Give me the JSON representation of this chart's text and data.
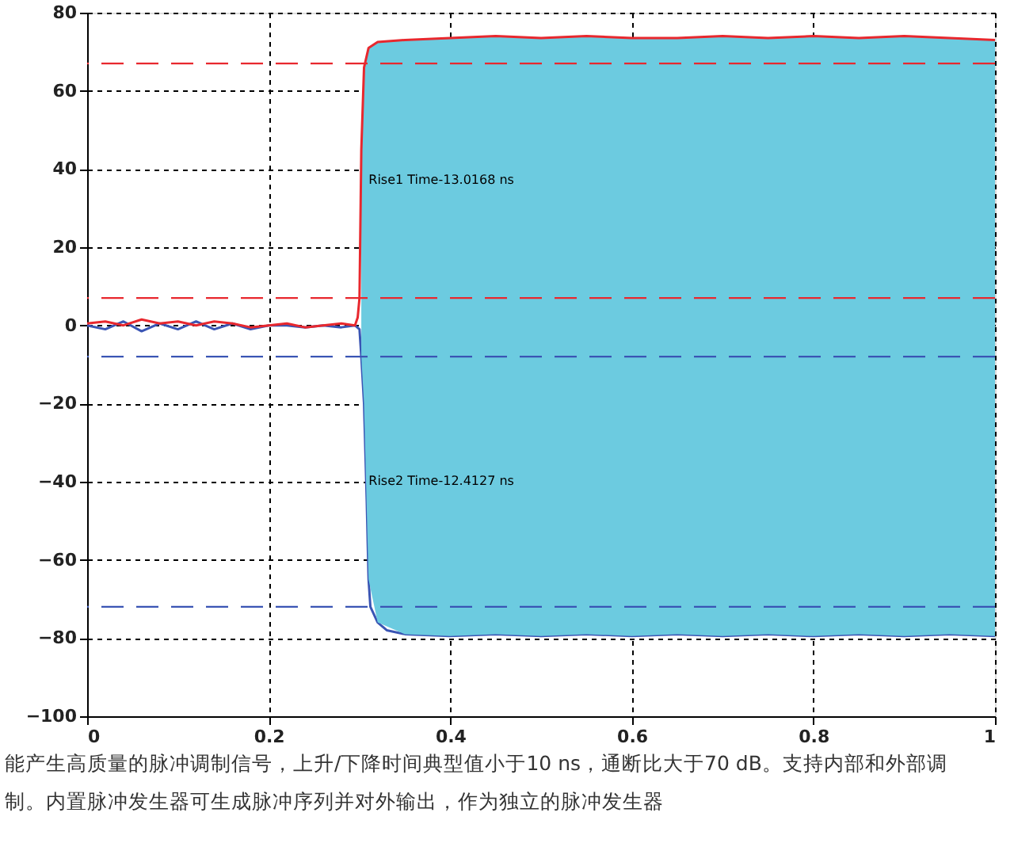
{
  "chart_data": {
    "type": "line",
    "xlim": [
      0,
      1
    ],
    "ylim": [
      -100,
      80
    ],
    "xticks": [
      0,
      0.2,
      0.4,
      0.6,
      0.8,
      1
    ],
    "yticks": [
      -100,
      -80,
      -60,
      -40,
      -20,
      0,
      20,
      40,
      60,
      80
    ],
    "grid": true,
    "line_style": "solid",
    "series": [
      {
        "color": "#3a55b4",
        "x": [
          0,
          0.02,
          0.04,
          0.06,
          0.08,
          0.1,
          0.12,
          0.14,
          0.16,
          0.18,
          0.2,
          0.22,
          0.24,
          0.26,
          0.28,
          0.295,
          0.3,
          0.302,
          0.305,
          0.308,
          0.31,
          0.312,
          0.32,
          0.33,
          0.35,
          0.4,
          0.45,
          0.5,
          0.55,
          0.6,
          0.65,
          0.7,
          0.75,
          0.8,
          0.85,
          0.9,
          0.95,
          1
        ],
        "values": [
          0,
          -1,
          1,
          -1.5,
          0.5,
          -1,
          1,
          -1,
          0.5,
          -1,
          0,
          0,
          -0.5,
          0,
          -0.5,
          0,
          -1,
          -8,
          -20,
          -45,
          -65,
          -72,
          -76,
          -78,
          -79,
          -79.5,
          -79,
          -79.5,
          -79,
          -79.5,
          -79,
          -79.5,
          -79,
          -79.5,
          -79,
          -79.5,
          -79,
          -79.5
        ]
      },
      {
        "color": "#e8282e",
        "x": [
          0,
          0.02,
          0.04,
          0.06,
          0.08,
          0.1,
          0.12,
          0.14,
          0.16,
          0.18,
          0.2,
          0.22,
          0.24,
          0.26,
          0.28,
          0.295,
          0.298,
          0.3,
          0.302,
          0.305,
          0.31,
          0.32,
          0.35,
          0.4,
          0.45,
          0.5,
          0.55,
          0.6,
          0.65,
          0.7,
          0.75,
          0.8,
          0.85,
          0.9,
          0.95,
          1
        ],
        "values": [
          0.5,
          1,
          0,
          1.5,
          0.5,
          1,
          0,
          1,
          0.5,
          -0.5,
          0,
          0.5,
          -0.5,
          0,
          0.5,
          0,
          2,
          7,
          45,
          66,
          71,
          72.5,
          73,
          73.5,
          74,
          73.5,
          74,
          73.5,
          73.5,
          74,
          73.5,
          74,
          73.5,
          74,
          73.5,
          73
        ],
        "lower": [
          null,
          null,
          null,
          null,
          null,
          null,
          null,
          null,
          null,
          null,
          null,
          null,
          null,
          null,
          null,
          null,
          null,
          null,
          -8,
          -20,
          -65,
          -76,
          -79,
          -79.5,
          -79,
          -79.5,
          -79,
          -79.5,
          -79,
          -79.5,
          -79,
          -79.5,
          -79,
          -79.5,
          -79,
          -79.5
        ],
        "upper": [
          null,
          null,
          null,
          null,
          null,
          null,
          null,
          null,
          null,
          null,
          null,
          null,
          null,
          null,
          null,
          null,
          null,
          null,
          45,
          66,
          71,
          72.5,
          73,
          73.5,
          74,
          73.5,
          74,
          73.5,
          73.5,
          74,
          73.5,
          74,
          73.5,
          74,
          73.5,
          73
        ]
      }
    ],
    "ref_lines": [
      {
        "axis": "y",
        "value": 67,
        "color": "#e8282e",
        "line_style": "dashed"
      },
      {
        "axis": "y",
        "value": 7,
        "color": "#e8282e",
        "line_style": "dashed"
      },
      {
        "axis": "y",
        "value": -8,
        "color": "#3a55b4",
        "line_style": "dashed"
      },
      {
        "axis": "y",
        "value": -72,
        "color": "#3a55b4",
        "line_style": "dashed"
      }
    ],
    "annotations": [
      {
        "text": "Rise1 Time-13.0168 ns",
        "x": 0.31,
        "y": 37
      },
      {
        "text": "Rise2 Time-12.4127 ns",
        "x": 0.31,
        "y": -40
      },
      "能产生高质量的脉冲调制信号，上升/下降时间典型值小于10 ns，通断比大于70 dB。支持内部和外部调制。内置脉冲发生器可生成脉冲序列并对外输出，作为独立的脉冲发生器"
    ]
  }
}
